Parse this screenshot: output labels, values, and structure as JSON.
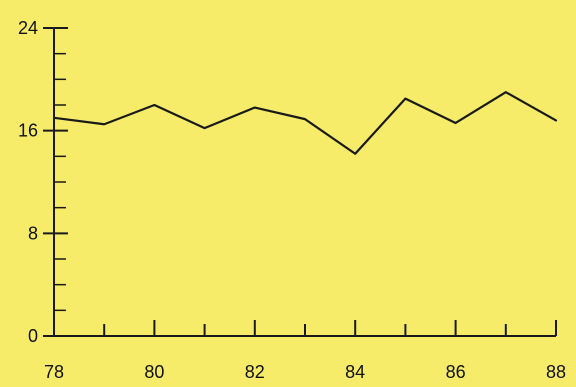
{
  "chart_data": {
    "type": "line",
    "title": "",
    "xlabel": "",
    "ylabel": "",
    "x": [
      78,
      79,
      80,
      81,
      82,
      83,
      84,
      85,
      86,
      87,
      88
    ],
    "series": [
      {
        "values": [
          17.0,
          16.5,
          18.0,
          16.2,
          17.8,
          16.9,
          14.2,
          18.5,
          16.6,
          19.0,
          16.8
        ]
      }
    ],
    "xlim": [
      78,
      88
    ],
    "ylim": [
      0,
      24
    ],
    "xticks": [
      78,
      80,
      82,
      84,
      86,
      88
    ],
    "xtick_labels": [
      "78",
      "80",
      "82",
      "84",
      "86",
      "88"
    ],
    "yticks": [
      0,
      8,
      16,
      24
    ],
    "ytick_labels": [
      "0",
      "8",
      "16",
      "24"
    ],
    "grid": false,
    "line_color": "#1a1a1a",
    "axis_color": "#1a1a1a",
    "background_color": "#f6ec6a"
  }
}
